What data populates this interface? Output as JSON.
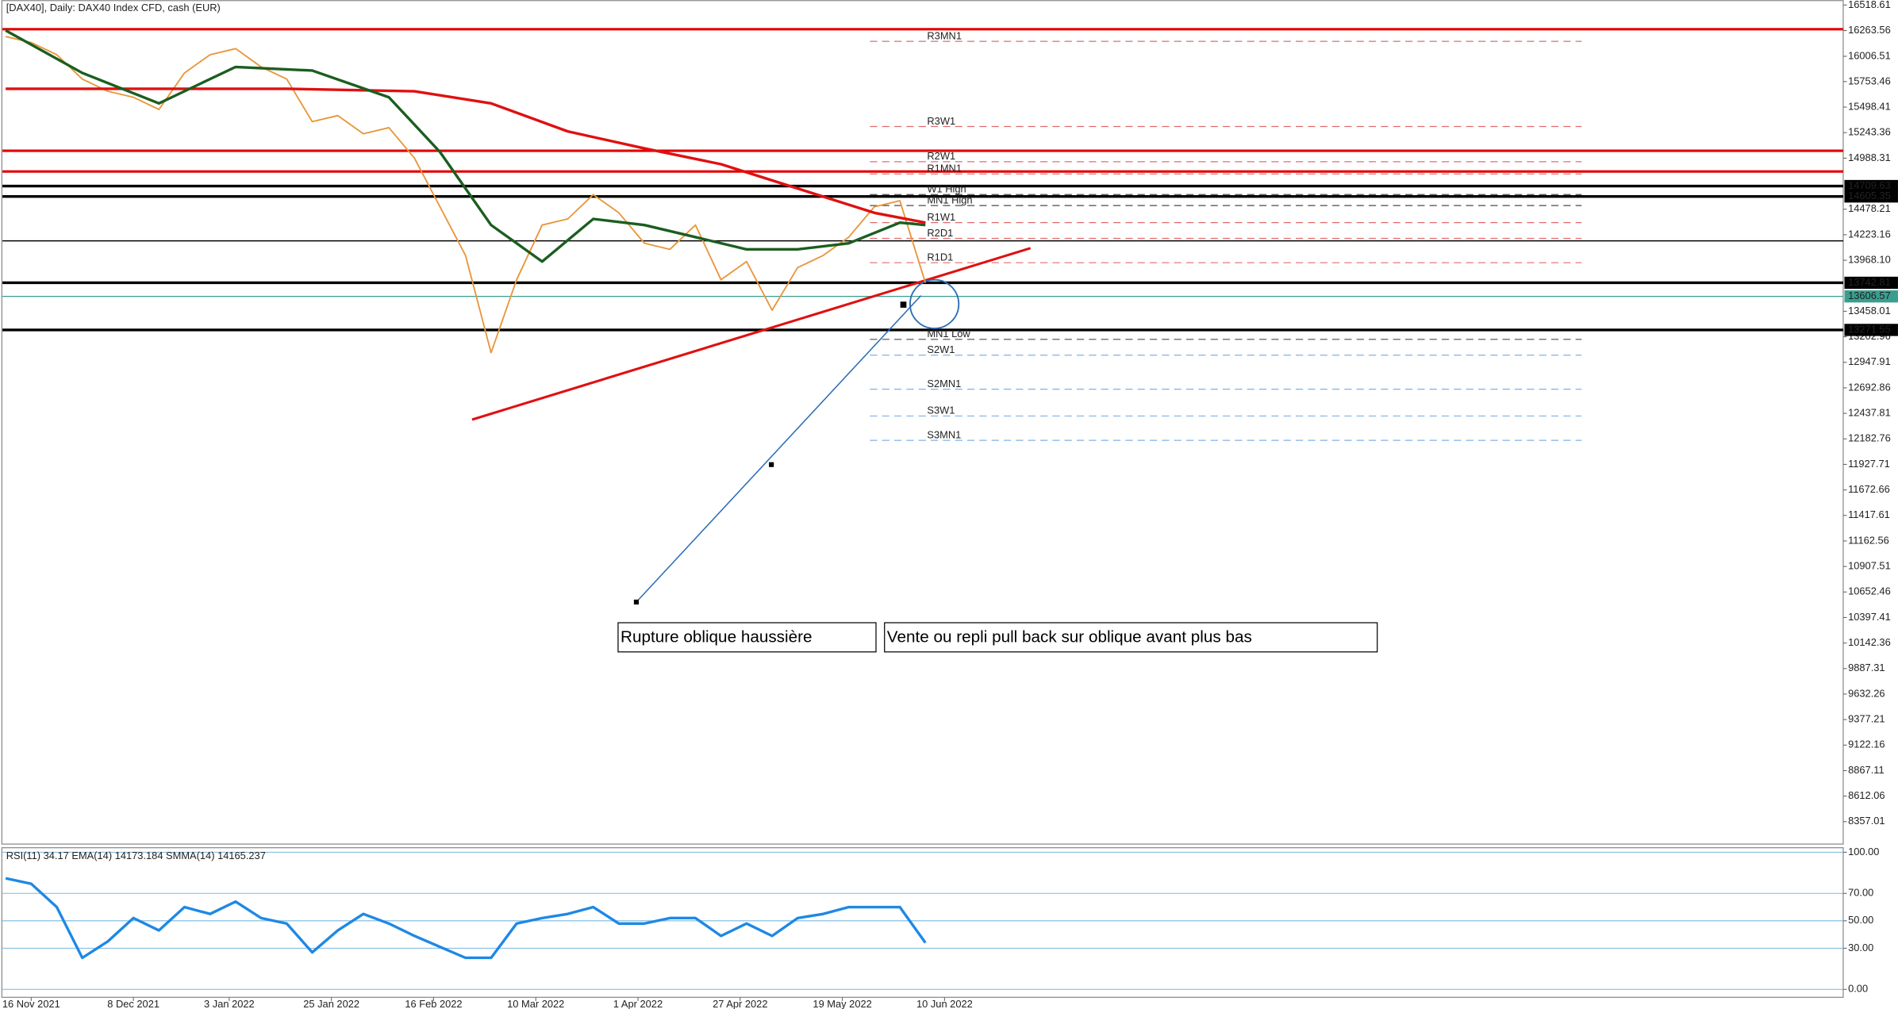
{
  "chart_data": [
    {
      "type": "line",
      "title": "[DAX40], Daily:  DAX40 Index CFD, cash (EUR)",
      "xlim": [
        -4.5,
        283.7
      ],
      "ylim": [
        8133,
        16569
      ],
      "xticks": [
        {
          "value": 0,
          "label": "16 Nov 2021"
        },
        {
          "value": 16,
          "label": "8 Dec 2021"
        },
        {
          "value": 31,
          "label": "3 Jan 2022"
        },
        {
          "value": 47,
          "label": "25 Jan 2022"
        },
        {
          "value": 63,
          "label": "16 Feb 2022"
        },
        {
          "value": 79,
          "label": "10 Mar 2022"
        },
        {
          "value": 95,
          "label": "1 Apr 2022"
        },
        {
          "value": 111,
          "label": "27 Apr 2022"
        },
        {
          "value": 127,
          "label": "19 May 2022"
        },
        {
          "value": 143,
          "label": "10 Jun 2022"
        }
      ],
      "yticks": [
        16518.61,
        16263.56,
        16006.51,
        15753.46,
        15498.41,
        15243.36,
        14988.31,
        14478.21,
        14223.16,
        {
          "value": 13968.1,
          "label": "13968.10"
        },
        13458.01,
        13202.96,
        12947.91,
        12692.86,
        12437.81,
        12182.76,
        11927.71,
        11672.66,
        11417.61,
        11162.56,
        10907.51,
        10652.46,
        10397.41,
        10142.36,
        9887.31,
        9632.26,
        9377.21,
        9122.16,
        8867.11,
        8612.06,
        8357.01
      ],
      "series": [
        {
          "color": "#e8963a",
          "width": 1.2,
          "x": [
            -4,
            0,
            4,
            8,
            12,
            16,
            20,
            24,
            28,
            32,
            36,
            40,
            44,
            48,
            52,
            56,
            60,
            64,
            68,
            72,
            76,
            80,
            84,
            88,
            92,
            96,
            100,
            104,
            108,
            112,
            116,
            120,
            124,
            128,
            132,
            136,
            140
          ],
          "values": [
            16204,
            16144,
            16022,
            15779,
            15657,
            15597,
            15475,
            15840,
            16022,
            16083,
            15900,
            15779,
            15353,
            15414,
            15232,
            15293,
            14989,
            14502,
            14016,
            13044,
            13773,
            14320,
            14381,
            14624,
            14442,
            14138,
            14077,
            14320,
            13773,
            13955,
            13469,
            13895,
            14016,
            14199,
            14502,
            14563,
            13743
          ]
        },
        {
          "color": "#e01010",
          "width": 2.2,
          "x": [
            -4,
            20,
            40,
            60,
            72,
            84,
            96,
            108,
            120,
            132,
            140
          ],
          "values": [
            15682,
            15682,
            15682,
            15657,
            15536,
            15256,
            15086,
            14928,
            14685,
            14442,
            14344
          ]
        },
        {
          "color": "#1b5e20",
          "width": 2.2,
          "x": [
            -4,
            8,
            20,
            32,
            44,
            56,
            64,
            72,
            80,
            88,
            96,
            104,
            112,
            120,
            128,
            136,
            140
          ],
          "values": [
            16265,
            15840,
            15536,
            15900,
            15864,
            15597,
            15050,
            14320,
            13955,
            14381,
            14320,
            14199,
            14077,
            14077,
            14138,
            14344,
            14320
          ]
        }
      ],
      "hlines": [
        {
          "value": 16277,
          "color": "#e00000",
          "width": 2
        },
        {
          "value": 15062,
          "color": "#e00000",
          "width": 2
        },
        {
          "value": 14855,
          "color": "#e00000",
          "width": 2
        },
        {
          "value": 14162,
          "color": "#000000",
          "width": 1
        }
      ],
      "price_labels": [
        {
          "value": 14709.63,
          "color": "#000000"
        },
        {
          "value": 14605.35,
          "color": "#000000"
        },
        {
          "value": 13742.81,
          "color": "#000000"
        },
        {
          "value": 13606.57,
          "color": "#3a9e8f"
        },
        {
          "value": 13271.55,
          "color": "#000000"
        }
      ],
      "pivots": [
        {
          "label": "R3MN1",
          "value": 16204,
          "color": "#d32f2f"
        },
        {
          "label": "R3W1",
          "value": 15353,
          "color": "#d32f2f"
        },
        {
          "label": "R2W1",
          "value": 15001,
          "color": "#d32f2f"
        },
        {
          "label": "R1MN1",
          "value": 14879,
          "color": "#d32f2f"
        },
        {
          "label": "W1 High",
          "value": 14673,
          "color": "#000000"
        },
        {
          "label": "MN1 High",
          "value": 14563,
          "color": "#000000"
        },
        {
          "label": "R1W1",
          "value": 14393,
          "color": "#d32f2f"
        },
        {
          "label": "R2D1",
          "value": 14235,
          "color": "#d32f2f"
        },
        {
          "label": "R1D1",
          "value": 13992,
          "color": "#d32f2f"
        },
        {
          "label": "MN1 Low",
          "value": 13226,
          "color": "#000000"
        },
        {
          "label": "S2W1",
          "value": 13068,
          "color": "#4a90d9"
        },
        {
          "label": "S2MN1",
          "value": 12728,
          "color": "#4a90d9"
        },
        {
          "label": "S3W1",
          "value": 12460,
          "color": "#4a90d9"
        },
        {
          "label": "S3MN1",
          "value": 12217,
          "color": "#4a90d9"
        }
      ],
      "annotations": [
        "Rupture oblique haussière",
        "Vente ou repli pull back sur oblique avant plus bas"
      ]
    },
    {
      "type": "line",
      "title": "RSI(11) 34.17 EMA(14) 14173.184 SMMA(14) 14165.237",
      "xlim": [
        -4.5,
        283.7
      ],
      "ylim": [
        -5.8,
        103.3
      ],
      "yticks": [
        {
          "value": 100,
          "label": "100.00"
        },
        {
          "value": 70,
          "label": "70.00"
        },
        {
          "value": 50,
          "label": "50.00"
        },
        {
          "value": 30,
          "label": "30.00"
        },
        {
          "value": 0,
          "label": "0.00"
        }
      ],
      "series": [
        {
          "color": "#1e88e5",
          "width": 2.2,
          "x": [
            -4,
            0,
            4,
            8,
            12,
            16,
            20,
            24,
            28,
            32,
            36,
            40,
            44,
            48,
            52,
            56,
            60,
            64,
            68,
            72,
            76,
            80,
            84,
            88,
            92,
            96,
            100,
            104,
            108,
            112,
            116,
            120,
            124,
            128,
            132,
            136,
            140
          ],
          "values": [
            81,
            77,
            60,
            23,
            35,
            52,
            43,
            60,
            55,
            64,
            52,
            48,
            27,
            43,
            55,
            48,
            39,
            31,
            23,
            23,
            48,
            52,
            55,
            60,
            48,
            48,
            52,
            52,
            39,
            48,
            39,
            52,
            55,
            60,
            60,
            60,
            34
          ]
        }
      ]
    }
  ]
}
